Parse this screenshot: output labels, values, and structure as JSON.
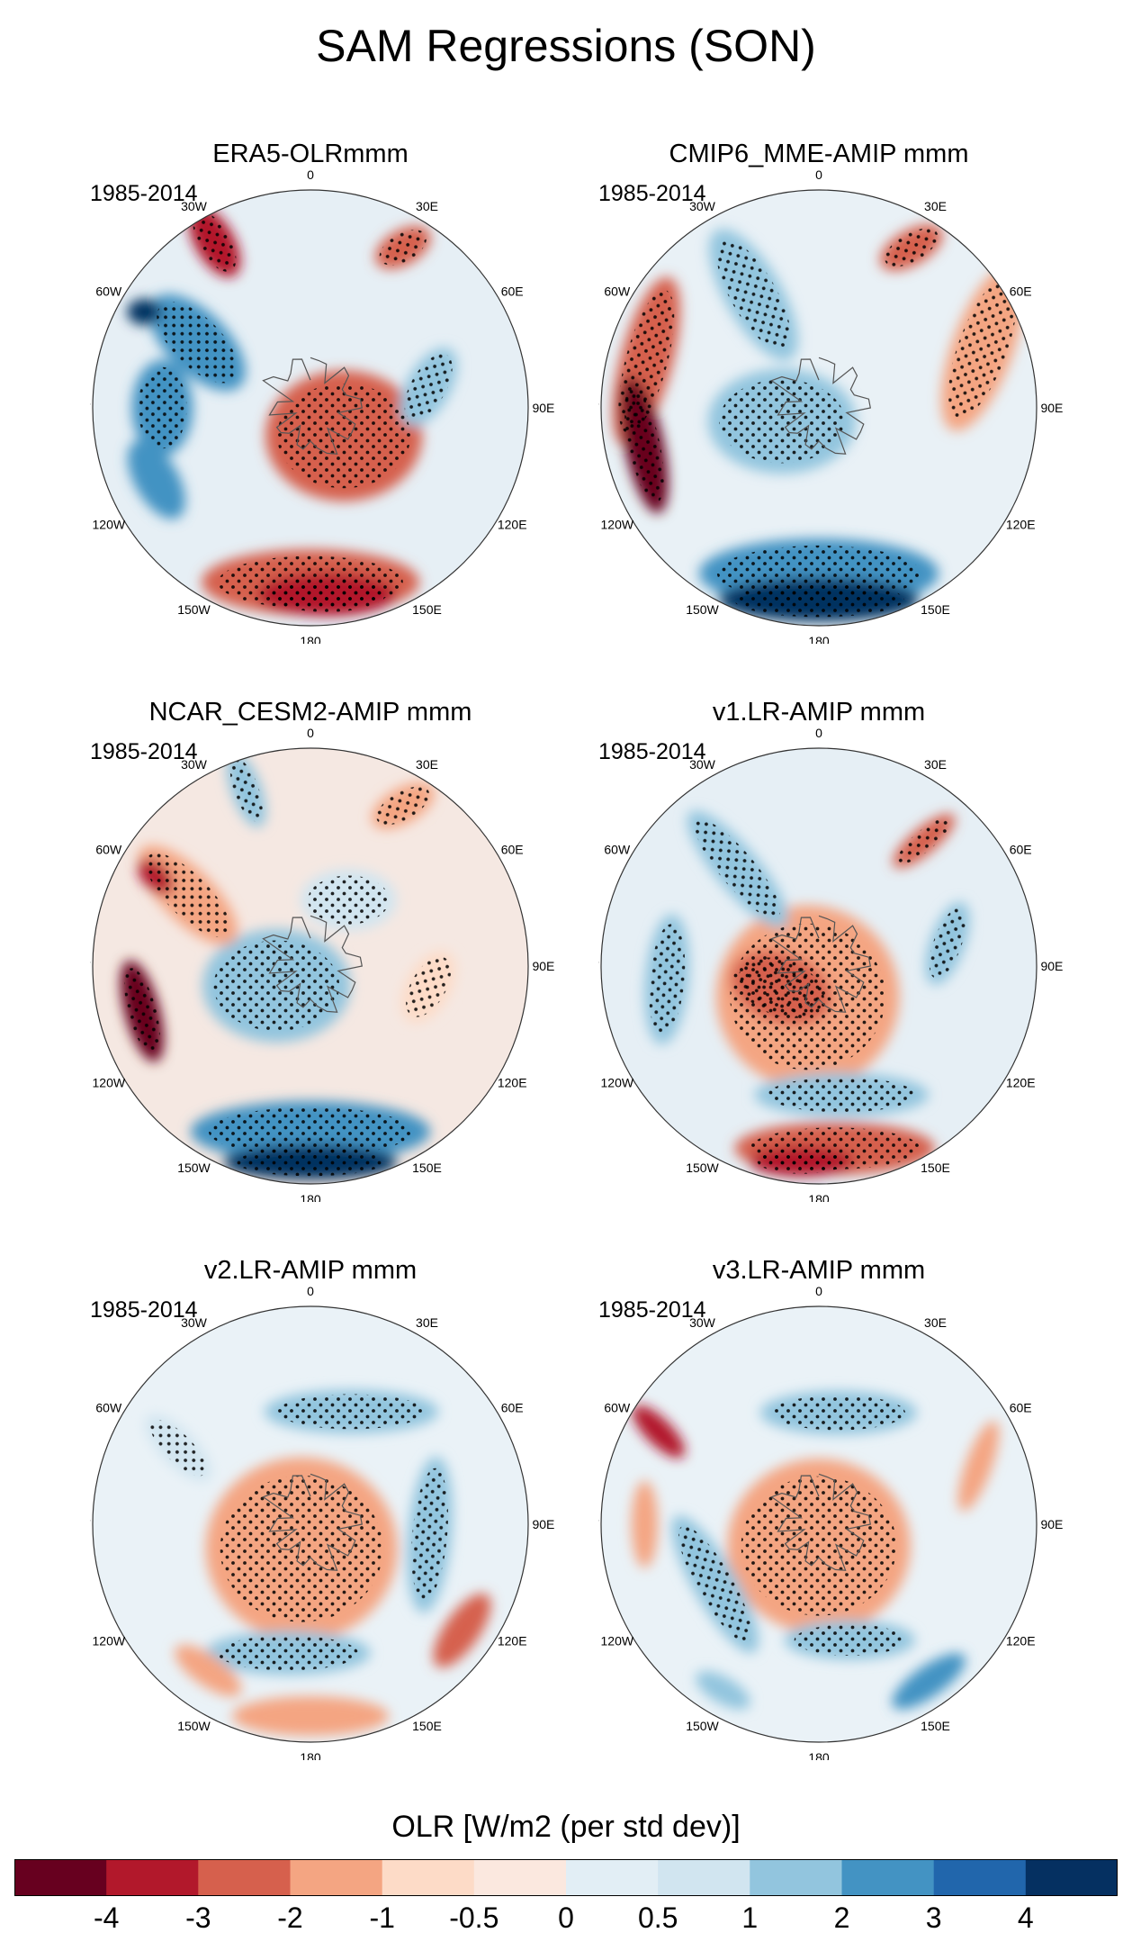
{
  "figure_title": "SAM Regressions (SON)",
  "chart_data": {
    "type": "polar-contour-map",
    "projection": "south-polar-stereographic",
    "variable_label": "OLR [W/m2 (per std dev)]",
    "period": "1985-2014",
    "longitude_labels": [
      "0",
      "30E",
      "60E",
      "90E",
      "120E",
      "150E",
      "180",
      "150W",
      "120W",
      "90W",
      "60W",
      "30W"
    ],
    "colorbar": {
      "tick_labels": [
        "-4",
        "-3",
        "-2",
        "-1",
        "-0.5",
        "0",
        "0.5",
        "1",
        "2",
        "3",
        "4"
      ],
      "colors": [
        "#67001f",
        "#b2182b",
        "#d6604d",
        "#f4a582",
        "#fddbc7",
        "#fbe8df",
        "#e2eef5",
        "#d1e5f0",
        "#92c5de",
        "#4393c3",
        "#2166ac",
        "#053061"
      ]
    },
    "panels": [
      {
        "title": "ERA5-OLRmmm",
        "period": "1985-2014",
        "base_color": "#e6eff5",
        "features": [
          {
            "desc": "polar positive core",
            "lon": 130,
            "r": 0.2,
            "a": 0.36,
            "b": 0.3,
            "rot": 0,
            "color": "#d6604d",
            "stipple": true
          },
          {
            "desc": "mid-lat negative ring sector",
            "lon": 300,
            "r": 0.6,
            "a": 0.28,
            "b": 0.14,
            "rot": 45,
            "color": "#4393c3",
            "stipple": true
          },
          {
            "desc": "negative near 90W",
            "lon": 270,
            "r": 0.68,
            "a": 0.22,
            "b": 0.14,
            "rot": 90,
            "color": "#4393c3",
            "stipple": true
          },
          {
            "desc": "strong negative 60W",
            "lon": 300,
            "r": 0.88,
            "a": 0.08,
            "b": 0.06,
            "rot": 0,
            "color": "#053061",
            "stipple": false
          },
          {
            "desc": "positive 30W",
            "lon": 330,
            "r": 0.88,
            "a": 0.18,
            "b": 0.09,
            "rot": 60,
            "color": "#b2182b",
            "stipple": true
          },
          {
            "desc": "positive 30E",
            "lon": 30,
            "r": 0.85,
            "a": 0.14,
            "b": 0.08,
            "rot": -30,
            "color": "#d6604d",
            "stipple": true
          },
          {
            "desc": "negative 120W",
            "lon": 245,
            "r": 0.78,
            "a": 0.2,
            "b": 0.1,
            "rot": 60,
            "color": "#4393c3",
            "stipple": false
          },
          {
            "desc": "negative 90E",
            "lon": 80,
            "r": 0.55,
            "a": 0.2,
            "b": 0.1,
            "rot": -60,
            "color": "#92c5de",
            "stipple": true
          },
          {
            "desc": "positive Pacific band",
            "lon": 180,
            "r": 0.8,
            "a": 0.5,
            "b": 0.15,
            "rot": 0,
            "color": "#d6604d",
            "stipple": true
          },
          {
            "desc": "strong positive 180",
            "lon": 175,
            "r": 0.86,
            "a": 0.32,
            "b": 0.1,
            "rot": 0,
            "color": "#b2182b",
            "stipple": true
          }
        ]
      },
      {
        "title": "CMIP6_MME-AMIP  mmm",
        "period": "1985-2014",
        "base_color": "#e9f1f6",
        "features": [
          {
            "desc": "polar negative",
            "lon": 250,
            "r": 0.18,
            "a": 0.34,
            "b": 0.24,
            "rot": 0,
            "color": "#92c5de",
            "stipple": true
          },
          {
            "desc": "negative 30W band",
            "lon": 330,
            "r": 0.6,
            "a": 0.34,
            "b": 0.13,
            "rot": 60,
            "color": "#92c5de",
            "stipple": true
          },
          {
            "desc": "positive 60W-90W",
            "lon": 285,
            "r": 0.82,
            "a": 0.4,
            "b": 0.12,
            "rot": 105,
            "color": "#d6604d",
            "stipple": true
          },
          {
            "desc": "strong positive 105W",
            "lon": 258,
            "r": 0.82,
            "a": 0.32,
            "b": 0.09,
            "rot": 78,
            "color": "#67001f",
            "stipple": true
          },
          {
            "desc": "positive 90E",
            "lon": 70,
            "r": 0.8,
            "a": 0.4,
            "b": 0.14,
            "rot": -70,
            "color": "#f4a582",
            "stipple": true
          },
          {
            "desc": "positive 30E",
            "lon": 30,
            "r": 0.85,
            "a": 0.16,
            "b": 0.08,
            "rot": -30,
            "color": "#d6604d",
            "stipple": true
          },
          {
            "desc": "negative Pacific band",
            "lon": 180,
            "r": 0.76,
            "a": 0.55,
            "b": 0.16,
            "rot": 0,
            "color": "#4393c3",
            "stipple": true
          },
          {
            "desc": "strong negative 180",
            "lon": 180,
            "r": 0.88,
            "a": 0.46,
            "b": 0.1,
            "rot": 0,
            "color": "#053061",
            "stipple": true
          }
        ]
      },
      {
        "title": "NCAR_CESM2-AMIP  mmm",
        "period": "1985-2014",
        "base_color": "#f5e8e2",
        "features": [
          {
            "desc": "polar negative",
            "lon": 240,
            "r": 0.18,
            "a": 0.34,
            "b": 0.26,
            "rot": 0,
            "color": "#92c5de",
            "stipple": true
          },
          {
            "desc": "negative 20E",
            "lon": 30,
            "r": 0.35,
            "a": 0.22,
            "b": 0.14,
            "rot": 0,
            "color": "#d1e5f0",
            "stipple": true
          },
          {
            "desc": "positive 60W",
            "lon": 300,
            "r": 0.65,
            "a": 0.3,
            "b": 0.12,
            "rot": 45,
            "color": "#f4a582",
            "stipple": true
          },
          {
            "desc": "strong positive 60W",
            "lon": 300,
            "r": 0.82,
            "a": 0.1,
            "b": 0.06,
            "rot": 45,
            "color": "#b2182b",
            "stipple": false
          },
          {
            "desc": "strong positive 110W",
            "lon": 255,
            "r": 0.8,
            "a": 0.24,
            "b": 0.08,
            "rot": 75,
            "color": "#67001f",
            "stipple": true
          },
          {
            "desc": "negative 30W",
            "lon": 340,
            "r": 0.86,
            "a": 0.18,
            "b": 0.07,
            "rot": 70,
            "color": "#92c5de",
            "stipple": true
          },
          {
            "desc": "positive 30E",
            "lon": 30,
            "r": 0.85,
            "a": 0.16,
            "b": 0.08,
            "rot": -30,
            "color": "#f4a582",
            "stipple": true
          },
          {
            "desc": "positive 90E",
            "lon": 100,
            "r": 0.55,
            "a": 0.18,
            "b": 0.1,
            "rot": -60,
            "color": "#fddbc7",
            "stipple": true
          },
          {
            "desc": "negative Pacific band",
            "lon": 180,
            "r": 0.76,
            "a": 0.55,
            "b": 0.14,
            "rot": 0,
            "color": "#4393c3",
            "stipple": true
          },
          {
            "desc": "strong negative 180",
            "lon": 180,
            "r": 0.9,
            "a": 0.4,
            "b": 0.08,
            "rot": 0,
            "color": "#053061",
            "stipple": true
          }
        ]
      },
      {
        "title": "v1.LR-AMIP  mmm",
        "period": "1985-2014",
        "base_color": "#e6eff5",
        "features": [
          {
            "desc": "polar positive core",
            "lon": 200,
            "r": 0.15,
            "a": 0.42,
            "b": 0.42,
            "rot": 0,
            "color": "#f4a582",
            "stipple": true
          },
          {
            "desc": "stronger positive",
            "lon": 240,
            "r": 0.2,
            "a": 0.24,
            "b": 0.16,
            "rot": 20,
            "color": "#d6604d",
            "stipple": true
          },
          {
            "desc": "negative ring 30W",
            "lon": 320,
            "r": 0.58,
            "a": 0.34,
            "b": 0.1,
            "rot": 50,
            "color": "#92c5de",
            "stipple": true
          },
          {
            "desc": "negative ring 90W",
            "lon": 265,
            "r": 0.7,
            "a": 0.3,
            "b": 0.1,
            "rot": 95,
            "color": "#92c5de",
            "stipple": true
          },
          {
            "desc": "positive 30E",
            "lon": 40,
            "r": 0.75,
            "a": 0.18,
            "b": 0.06,
            "rot": -40,
            "color": "#d6604d",
            "stipple": true
          },
          {
            "desc": "negative 60E-90E",
            "lon": 80,
            "r": 0.6,
            "a": 0.2,
            "b": 0.08,
            "rot": -70,
            "color": "#92c5de",
            "stipple": true
          },
          {
            "desc": "negative ring south",
            "lon": 170,
            "r": 0.6,
            "a": 0.4,
            "b": 0.1,
            "rot": 0,
            "color": "#92c5de",
            "stipple": true
          },
          {
            "desc": "positive Pacific band",
            "lon": 175,
            "r": 0.84,
            "a": 0.46,
            "b": 0.12,
            "rot": 0,
            "color": "#d6604d",
            "stipple": true
          },
          {
            "desc": "strong positive 180",
            "lon": 185,
            "r": 0.9,
            "a": 0.24,
            "b": 0.07,
            "rot": 0,
            "color": "#b2182b",
            "stipple": true
          }
        ]
      },
      {
        "title": "v2.LR-AMIP  mmm",
        "period": "1985-2014",
        "base_color": "#eaf2f7",
        "features": [
          {
            "desc": "polar positive core",
            "lon": 200,
            "r": 0.12,
            "a": 0.44,
            "b": 0.42,
            "rot": 0,
            "color": "#f4a582",
            "stipple": true
          },
          {
            "desc": "negative ring north",
            "lon": 20,
            "r": 0.55,
            "a": 0.4,
            "b": 0.1,
            "rot": 0,
            "color": "#92c5de",
            "stipple": true
          },
          {
            "desc": "negative ring east",
            "lon": 95,
            "r": 0.55,
            "a": 0.36,
            "b": 0.1,
            "rot": -85,
            "color": "#92c5de",
            "stipple": true
          },
          {
            "desc": "negative ring south",
            "lon": 190,
            "r": 0.6,
            "a": 0.38,
            "b": 0.1,
            "rot": 0,
            "color": "#92c5de",
            "stipple": true
          },
          {
            "desc": "negative 60W",
            "lon": 300,
            "r": 0.7,
            "a": 0.2,
            "b": 0.08,
            "rot": 45,
            "color": "#d1e5f0",
            "stipple": true
          },
          {
            "desc": "positive 120E",
            "lon": 125,
            "r": 0.85,
            "a": 0.2,
            "b": 0.08,
            "rot": -55,
            "color": "#d6604d",
            "stipple": false
          },
          {
            "desc": "positive 180",
            "lon": 180,
            "r": 0.88,
            "a": 0.36,
            "b": 0.09,
            "rot": 0,
            "color": "#f4a582",
            "stipple": false
          },
          {
            "desc": "positive 150W",
            "lon": 215,
            "r": 0.82,
            "a": 0.18,
            "b": 0.07,
            "rot": 35,
            "color": "#f4a582",
            "stipple": false
          }
        ]
      },
      {
        "title": "v3.LR-AMIP  mmm",
        "period": "1985-2014",
        "base_color": "#eaf2f7",
        "features": [
          {
            "desc": "polar positive core",
            "lon": 180,
            "r": 0.1,
            "a": 0.42,
            "b": 0.4,
            "rot": 0,
            "color": "#f4a582",
            "stipple": true
          },
          {
            "desc": "negative ring north",
            "lon": 10,
            "r": 0.52,
            "a": 0.36,
            "b": 0.1,
            "rot": 0,
            "color": "#92c5de",
            "stipple": true
          },
          {
            "desc": "negative ring west",
            "lon": 240,
            "r": 0.55,
            "a": 0.36,
            "b": 0.1,
            "rot": 60,
            "color": "#92c5de",
            "stipple": true
          },
          {
            "desc": "negative ring south",
            "lon": 165,
            "r": 0.55,
            "a": 0.3,
            "b": 0.09,
            "rot": 0,
            "color": "#92c5de",
            "stipple": true
          },
          {
            "desc": "positive 60W",
            "lon": 300,
            "r": 0.85,
            "a": 0.16,
            "b": 0.06,
            "rot": 45,
            "color": "#b2182b",
            "stipple": false
          },
          {
            "desc": "positive 90W",
            "lon": 270,
            "r": 0.8,
            "a": 0.2,
            "b": 0.06,
            "rot": 90,
            "color": "#f4a582",
            "stipple": false
          },
          {
            "desc": "positive 60E",
            "lon": 70,
            "r": 0.78,
            "a": 0.22,
            "b": 0.06,
            "rot": -70,
            "color": "#f4a582",
            "stipple": false
          },
          {
            "desc": "negative 150E",
            "lon": 145,
            "r": 0.88,
            "a": 0.2,
            "b": 0.07,
            "rot": -35,
            "color": "#4393c3",
            "stipple": false
          },
          {
            "desc": "negative 150W",
            "lon": 210,
            "r": 0.88,
            "a": 0.14,
            "b": 0.06,
            "rot": 30,
            "color": "#92c5de",
            "stipple": false
          }
        ]
      }
    ]
  }
}
